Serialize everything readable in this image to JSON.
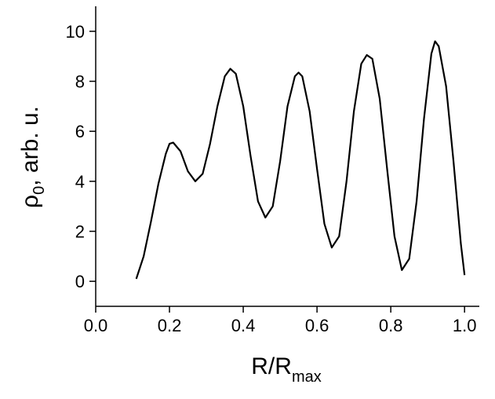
{
  "chart_data": {
    "type": "line",
    "x_label": {
      "main": "R/R",
      "sub": "max"
    },
    "y_label": {
      "main": "ρ",
      "sub": "0",
      "rest": ", arb. u."
    },
    "color": "#000000",
    "x": [
      0.11,
      0.13,
      0.15,
      0.17,
      0.19,
      0.2,
      0.21,
      0.23,
      0.25,
      0.27,
      0.29,
      0.31,
      0.33,
      0.35,
      0.365,
      0.38,
      0.4,
      0.42,
      0.44,
      0.46,
      0.48,
      0.5,
      0.52,
      0.54,
      0.55,
      0.56,
      0.58,
      0.6,
      0.62,
      0.64,
      0.66,
      0.68,
      0.7,
      0.72,
      0.735,
      0.75,
      0.77,
      0.79,
      0.81,
      0.83,
      0.85,
      0.87,
      0.89,
      0.91,
      0.92,
      0.93,
      0.95,
      0.97,
      0.99,
      1.0
    ],
    "values": [
      0.1,
      1.0,
      2.4,
      3.9,
      5.1,
      5.5,
      5.55,
      5.2,
      4.4,
      4.0,
      4.3,
      5.5,
      7.0,
      8.2,
      8.5,
      8.3,
      7.0,
      5.0,
      3.2,
      2.55,
      3.0,
      4.8,
      7.0,
      8.2,
      8.35,
      8.2,
      6.8,
      4.5,
      2.3,
      1.35,
      1.8,
      4.0,
      6.8,
      8.7,
      9.05,
      8.9,
      7.3,
      4.5,
      1.8,
      0.45,
      0.9,
      3.2,
      6.5,
      9.1,
      9.6,
      9.4,
      7.8,
      4.8,
      1.5,
      0.25
    ],
    "xlim": [
      0,
      1.04
    ],
    "xticks": [
      {
        "value": 0,
        "label": "0.0"
      },
      0.2,
      0.4,
      0.6,
      0.8,
      {
        "value": 1,
        "label": "1.0"
      }
    ],
    "ylim": [
      -1,
      11
    ],
    "yticks": [
      0,
      2,
      4,
      6,
      8,
      10
    ],
    "grid": false
  }
}
